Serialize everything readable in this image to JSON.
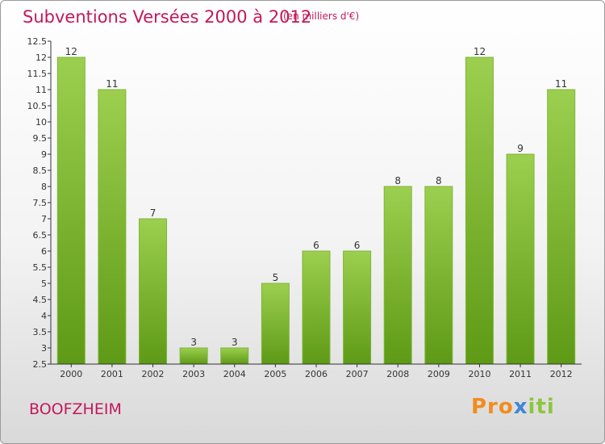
{
  "title": "Subventions Versées 2000 à 2012",
  "subtitle": "(en milliers d'€)",
  "commune": "BOOFZHEIM",
  "logo": {
    "part1": "Pro",
    "part2": "x",
    "part3": "iti"
  },
  "colors": {
    "bar_light": "#9ccf4f",
    "bar_dark": "#5e9a16",
    "title": "#c2185b"
  },
  "chart_data": {
    "type": "bar",
    "title": "Subventions Versées 2000 à 2012",
    "subtitle": "(en milliers d'€)",
    "categories": [
      "2000",
      "2001",
      "2002",
      "2003",
      "2004",
      "2005",
      "2006",
      "2007",
      "2008",
      "2009",
      "2010",
      "2011",
      "2012"
    ],
    "values": [
      12,
      11,
      7,
      3,
      3,
      5,
      6,
      6,
      8,
      8,
      12,
      9,
      11
    ],
    "data_labels": [
      "12",
      "11",
      "7",
      "3",
      "3",
      "5",
      "6",
      "6",
      "8",
      "8",
      "12",
      "9",
      "11"
    ],
    "ylim": [
      2.5,
      12.5
    ],
    "yticks": [
      "2.5",
      "3",
      "3.5",
      "4",
      "4.5",
      "5",
      "5.5",
      "6",
      "6.5",
      "7",
      "7.5",
      "8",
      "8.5",
      "9",
      "9.5",
      "10",
      "10.5",
      "11",
      "11.5",
      "12",
      "12.5"
    ],
    "grid": false,
    "legend": "none"
  }
}
